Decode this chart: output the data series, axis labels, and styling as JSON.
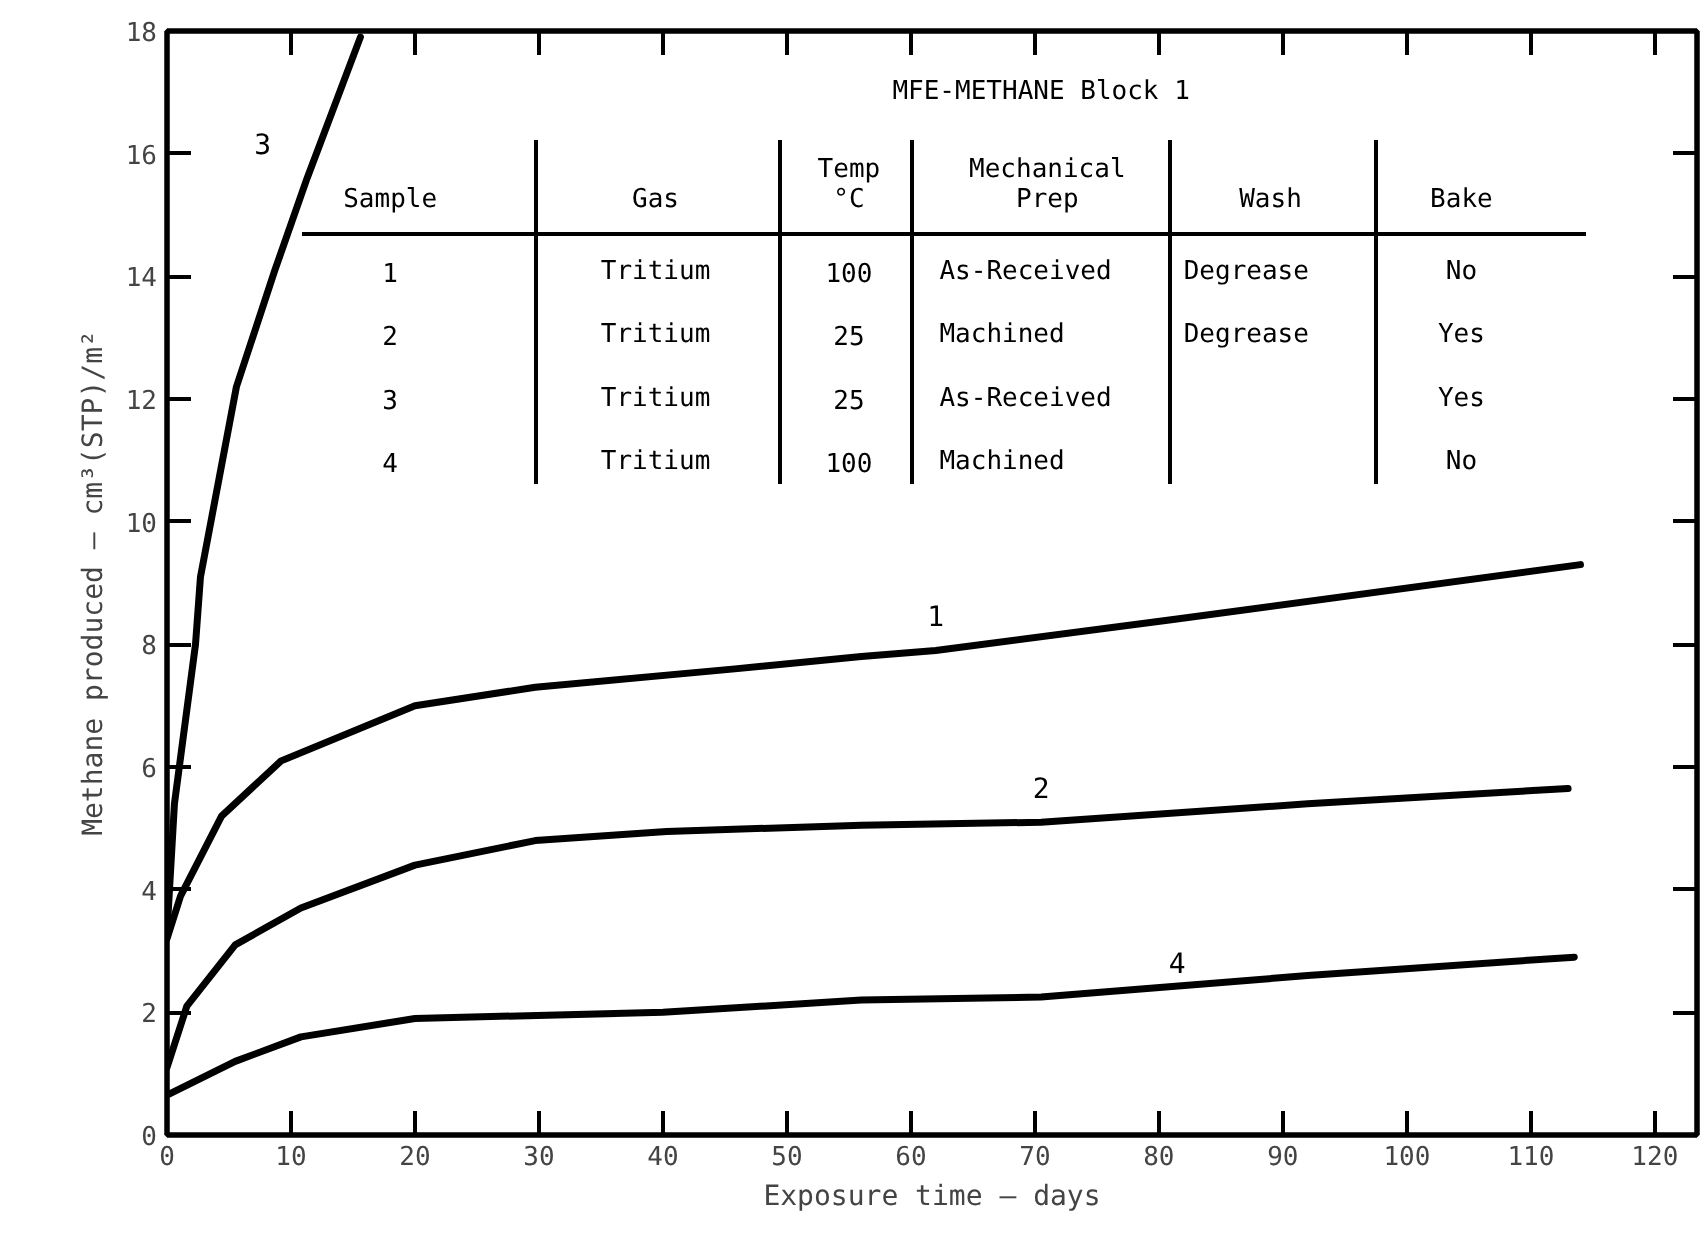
{
  "chart_data": {
    "type": "line",
    "xlabel": "Exposure time — days",
    "ylabel": "Methane produced — cm³(STP)/m²",
    "xlim": [
      0,
      123.4
    ],
    "ylim": [
      0,
      18
    ],
    "xticks": [
      0,
      10,
      20,
      30,
      40,
      50,
      60,
      70,
      80,
      90,
      100,
      110,
      120
    ],
    "yticks": [
      0,
      2,
      4,
      6,
      8,
      10,
      12,
      14,
      16,
      18
    ],
    "grid": false,
    "legend": false,
    "marker": "none",
    "line_style": "solid",
    "series": [
      {
        "name": "1",
        "color": "#000000",
        "x": [
          0,
          1.1,
          4.4,
          9.2,
          20,
          29.7,
          45.8,
          56,
          62,
          81,
          114
        ],
        "values": [
          3.2,
          3.9,
          5.2,
          6.1,
          7.0,
          7.3,
          7.6,
          7.8,
          7.9,
          8.4,
          9.3
        ]
      },
      {
        "name": "2",
        "color": "#000000",
        "x": [
          0,
          1.6,
          5.5,
          10.8,
          20,
          29.7,
          40.3,
          56,
          70.5,
          92,
          113
        ],
        "values": [
          1.1,
          2.1,
          3.1,
          3.7,
          4.4,
          4.8,
          4.95,
          5.05,
          5.1,
          5.4,
          5.65
        ]
      },
      {
        "name": "3",
        "color": "#000000",
        "x": [
          0,
          0.6,
          2.3,
          2.7,
          5.6,
          8.7,
          11.3,
          15.6
        ],
        "values": [
          3.3,
          5.4,
          8.0,
          9.1,
          12.2,
          14.1,
          15.6,
          17.9
        ]
      },
      {
        "name": "4",
        "color": "#000000",
        "x": [
          0,
          5.5,
          10.8,
          20,
          40,
          56,
          70.5,
          92,
          113.5
        ],
        "values": [
          0.65,
          1.2,
          1.6,
          1.9,
          2.0,
          2.2,
          2.25,
          2.6,
          2.9
        ]
      }
    ],
    "annotations": [
      "MFE-METHANE Block 1",
      "Sample",
      "Gas",
      "Temp\n°C",
      "Mechanical\nPrep",
      "Wash",
      "Bake",
      "1",
      "Tritium",
      "100",
      "As-Received",
      "Degrease",
      "No",
      "2",
      "Tritium",
      "25",
      "Machined",
      "Degrease",
      "Yes",
      "3",
      "Tritium",
      "25",
      "As-Received",
      null,
      "Yes",
      "4",
      "Tritium",
      "100",
      "Machined",
      null,
      "No"
    ]
  }
}
